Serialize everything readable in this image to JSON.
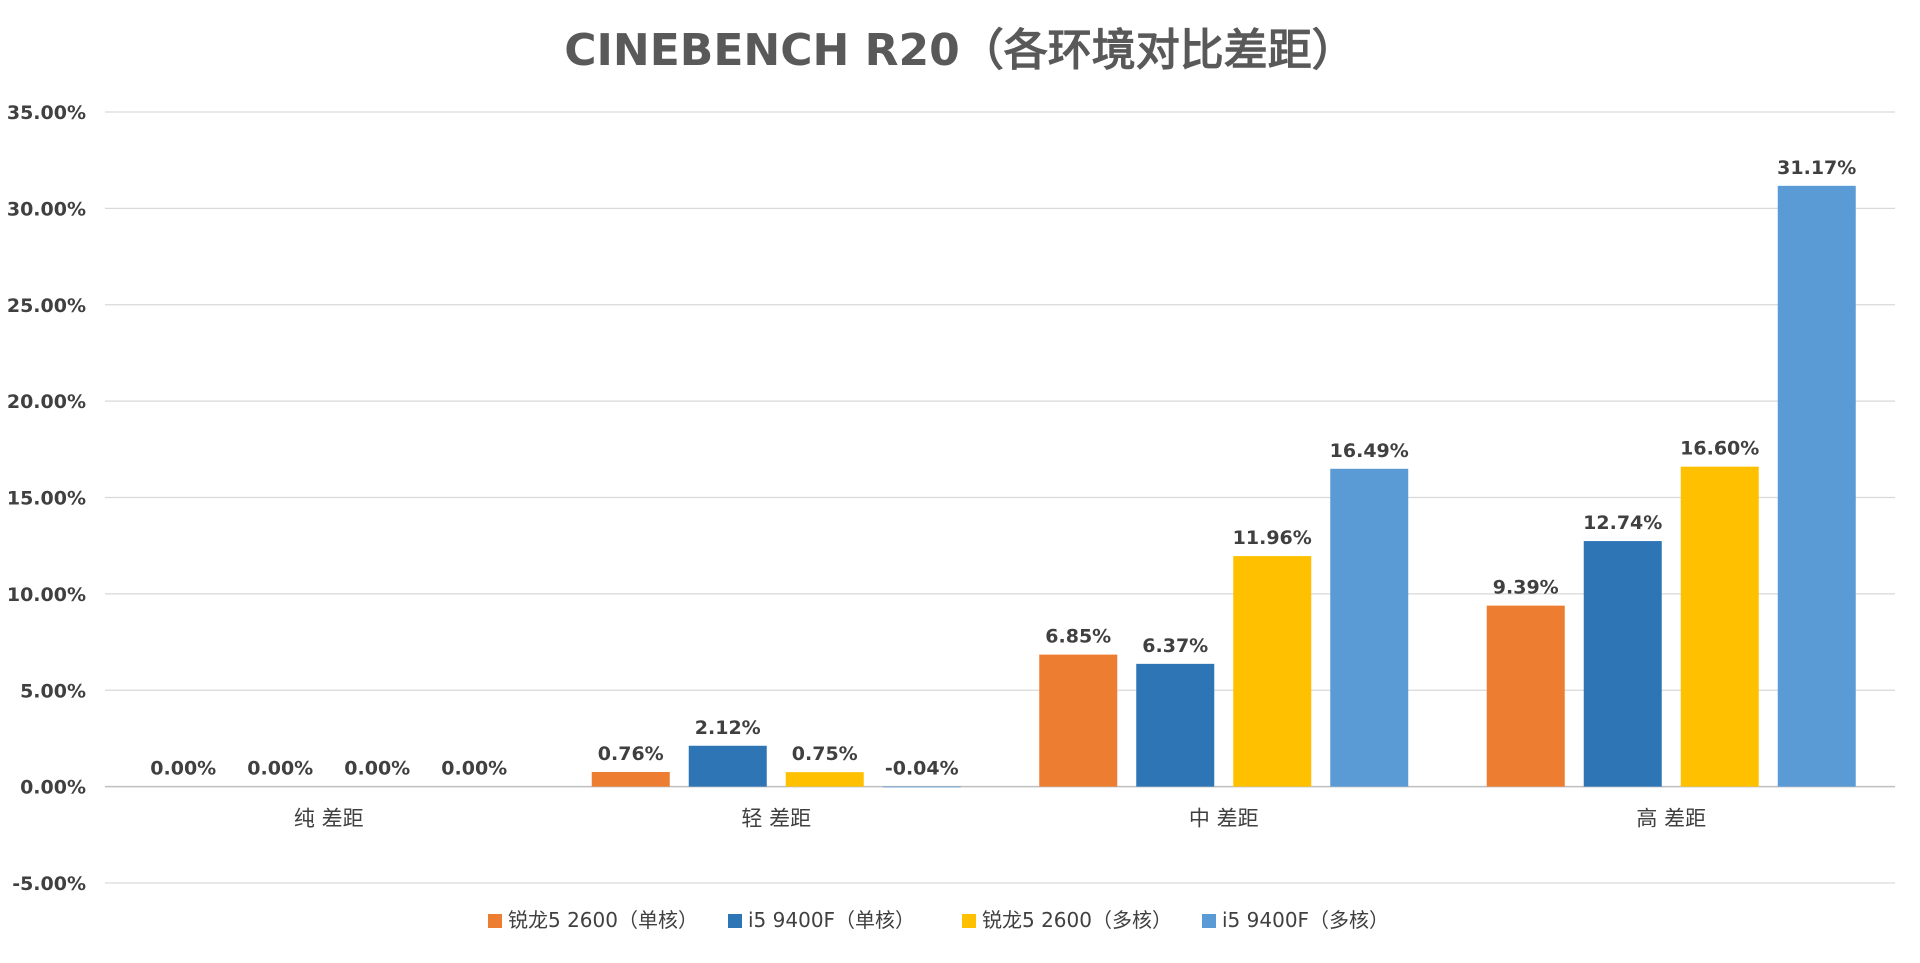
{
  "chart_data": {
    "type": "bar",
    "title": "CINEBENCH R20（各环境对比差距）",
    "xlabel": "",
    "ylabel": "",
    "categories": [
      "纯 差距",
      "轻 差距",
      "中 差距",
      "高 差距"
    ],
    "series": [
      {
        "name": "锐龙5 2600（单核）",
        "color": "#ED7D31",
        "values": [
          0.0,
          0.76,
          6.85,
          9.39
        ],
        "labels": [
          "0.00%",
          "0.76%",
          "6.85%",
          "9.39%"
        ]
      },
      {
        "name": "i5 9400F（单核）",
        "color": "#2E75B6",
        "values": [
          0.0,
          2.12,
          6.37,
          12.74
        ],
        "labels": [
          "0.00%",
          "2.12%",
          "6.37%",
          "12.74%"
        ]
      },
      {
        "name": "锐龙5 2600（多核）",
        "color": "#FFC000",
        "values": [
          0.0,
          0.75,
          11.96,
          16.6
        ],
        "labels": [
          "0.00%",
          "0.75%",
          "11.96%",
          "16.60%"
        ]
      },
      {
        "name": "i5 9400F（多核）",
        "color": "#5B9BD5",
        "values": [
          0.0,
          -0.04,
          16.49,
          31.17
        ],
        "labels": [
          "0.00%",
          "-0.04%",
          "16.49%",
          "31.17%"
        ]
      }
    ],
    "ylim": [
      -5,
      35
    ],
    "yticks": [
      -5,
      0,
      5,
      10,
      15,
      20,
      25,
      30,
      35
    ],
    "ytick_labels": [
      "-5.00%",
      "0.00%",
      "5.00%",
      "10.00%",
      "15.00%",
      "20.00%",
      "25.00%",
      "30.00%",
      "35.00%"
    ],
    "grid": true,
    "legend_position": "bottom"
  }
}
